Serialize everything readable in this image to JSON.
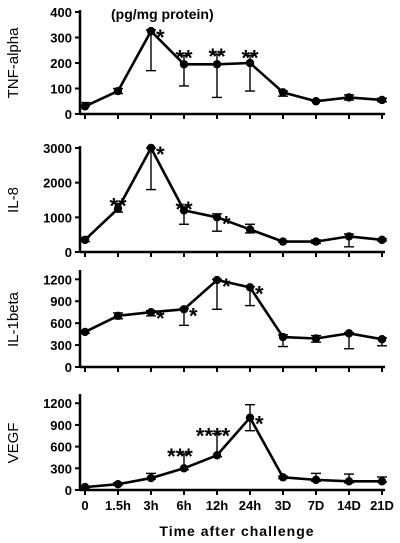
{
  "xlabel": "Time after challenge",
  "unit_label": "(pg/mg protein)",
  "x_categories": [
    "0",
    "1.5h",
    "3h",
    "6h",
    "12h",
    "24h",
    "3D",
    "7D",
    "14D",
    "21D"
  ],
  "chart_data": [
    {
      "type": "line",
      "ylabel": "TNF-alpha",
      "ylim": [
        0,
        400
      ],
      "yticks": [
        0,
        100,
        200,
        300,
        400
      ],
      "x": [
        "0",
        "1.5h",
        "3h",
        "6h",
        "12h",
        "24h",
        "3D",
        "7D",
        "14D",
        "21D"
      ],
      "values": [
        30,
        90,
        325,
        195,
        195,
        200,
        85,
        50,
        65,
        55
      ],
      "error_upper": [
        45,
        100,
        330,
        230,
        235,
        230,
        90,
        55,
        75,
        62
      ],
      "error_lower": [
        30,
        80,
        170,
        110,
        65,
        90,
        70,
        50,
        55,
        48
      ],
      "annotations": [
        {
          "x": "3h",
          "text": "*"
        },
        {
          "x": "6h",
          "text": "**"
        },
        {
          "x": "12h",
          "text": "**"
        },
        {
          "x": "24h",
          "text": "**"
        }
      ]
    },
    {
      "type": "line",
      "ylabel": "IL-8",
      "ylim": [
        0,
        3000
      ],
      "yticks": [
        0,
        1000,
        2000,
        3000
      ],
      "x": [
        "0",
        "1.5h",
        "3h",
        "6h",
        "12h",
        "24h",
        "3D",
        "7D",
        "14D",
        "21D"
      ],
      "values": [
        350,
        1250,
        3000,
        1200,
        1000,
        650,
        300,
        300,
        450,
        350
      ],
      "error_upper": [
        420,
        1400,
        3000,
        1300,
        1100,
        800,
        320,
        350,
        520,
        380
      ],
      "error_lower": [
        300,
        1150,
        1800,
        800,
        600,
        550,
        280,
        250,
        150,
        320
      ],
      "annotations": [
        {
          "x": "1.5h",
          "text": "**"
        },
        {
          "x": "3h",
          "text": "*"
        },
        {
          "x": "6h",
          "text": "**"
        },
        {
          "x": "12h",
          "text": "*"
        }
      ]
    },
    {
      "type": "line",
      "ylabel": "IL-1beta",
      "ylim": [
        0,
        1300
      ],
      "yticks": [
        0,
        300,
        600,
        900,
        1200
      ],
      "x": [
        "0",
        "1.5h",
        "3h",
        "6h",
        "12h",
        "24h",
        "3D",
        "7D",
        "14D",
        "21D"
      ],
      "values": [
        480,
        700,
        750,
        790,
        1190,
        1090,
        410,
        390,
        460,
        380
      ],
      "error_upper": [
        500,
        740,
        770,
        800,
        1200,
        1100,
        440,
        430,
        470,
        400
      ],
      "error_lower": [
        460,
        660,
        700,
        570,
        790,
        840,
        280,
        340,
        250,
        290
      ],
      "annotations": [
        {
          "x": "3h",
          "text": "*"
        },
        {
          "x": "6h",
          "text": "*"
        },
        {
          "x": "12h",
          "text": "*"
        },
        {
          "x": "24h",
          "text": "*"
        }
      ]
    },
    {
      "type": "line",
      "ylabel": "VEGF",
      "ylim": [
        0,
        1300
      ],
      "yticks": [
        0,
        300,
        600,
        900,
        1200
      ],
      "x": [
        "0",
        "1.5h",
        "3h",
        "6h",
        "12h",
        "24h",
        "3D",
        "7D",
        "14D",
        "21D"
      ],
      "values": [
        40,
        80,
        165,
        300,
        480,
        1000,
        175,
        140,
        120,
        120
      ],
      "error_upper": [
        50,
        100,
        230,
        500,
        780,
        1180,
        190,
        230,
        220,
        180
      ],
      "error_lower": [
        30,
        70,
        150,
        280,
        460,
        820,
        160,
        120,
        100,
        110
      ],
      "annotations": [
        {
          "x": "6h",
          "text": "***"
        },
        {
          "x": "12h",
          "text": "****"
        },
        {
          "x": "24h",
          "text": "*"
        }
      ]
    }
  ]
}
